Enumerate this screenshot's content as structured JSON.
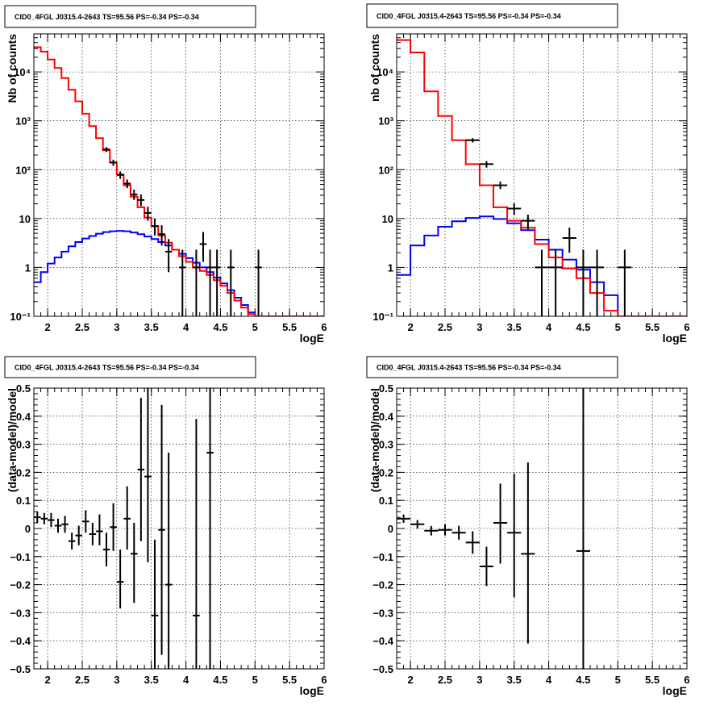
{
  "chart_data": [
    {
      "type": "line",
      "title": "CID0_4FGL J0315.4-2643 TS=95.56 PS=-0.34 PS=-0.34",
      "xlabel": "logE",
      "ylabel": "Nb of counts",
      "xlim": [
        1.8,
        6.0
      ],
      "ylim": [
        0.1,
        60000
      ],
      "yscale": "log",
      "grid": true,
      "xticks": [
        "2",
        "2.5",
        "3",
        "3.5",
        "4",
        "4.5",
        "5",
        "5.5",
        "6"
      ],
      "yticks": [
        "10⁻¹",
        "1",
        "10",
        "10²",
        "10³",
        "10⁴"
      ],
      "bin_edges": [
        1.8,
        1.9,
        2.0,
        2.1,
        2.2,
        2.3,
        2.4,
        2.5,
        2.6,
        2.7,
        2.8,
        2.9,
        3.0,
        3.1,
        3.2,
        3.3,
        3.4,
        3.5,
        3.6,
        3.7,
        3.8,
        3.9,
        4.0,
        4.1,
        4.2,
        4.3,
        4.4,
        4.5,
        4.6,
        4.7,
        4.8,
        4.9,
        5.0,
        5.1,
        5.2,
        5.3,
        5.4,
        5.5,
        5.6,
        5.7,
        5.8,
        5.9,
        6.0
      ],
      "series": [
        {
          "name": "",
          "color": "#ff0000",
          "values": [
            32000,
            26000,
            18000,
            12000,
            7500,
            4300,
            2500,
            1400,
            780,
            440,
            250,
            140,
            80,
            48,
            28,
            17,
            10.5,
            7,
            4.5,
            3.2,
            2.3,
            1.7,
            1.3,
            1.0,
            0.85,
            0.7,
            0.55,
            0.42,
            0.3,
            0.21,
            0.15,
            0.11,
            0.1,
            0.1,
            0.1,
            0.1,
            0.1,
            0.1,
            0.1,
            0.1,
            0.1,
            0.1
          ]
        },
        {
          "name": "",
          "color": "#0000ff",
          "values": [
            0.5,
            0.8,
            1.2,
            1.6,
            2.1,
            2.7,
            3.3,
            3.9,
            4.4,
            4.9,
            5.3,
            5.5,
            5.6,
            5.5,
            5.2,
            4.8,
            4.3,
            3.8,
            3.3,
            2.8,
            2.3,
            1.9,
            1.55,
            1.25,
            1.0,
            0.8,
            0.62,
            0.47,
            0.34,
            0.24,
            0.17,
            0.12,
            0.1,
            0.1,
            0.1,
            0.1,
            0.1,
            0.1,
            0.1,
            0.1,
            0.1,
            0.1
          ]
        }
      ],
      "points": [
        {
          "x": 2.85,
          "y": 260,
          "ylo": 230,
          "yhi": 290
        },
        {
          "x": 2.95,
          "y": 140,
          "ylo": 120,
          "yhi": 160
        },
        {
          "x": 3.05,
          "y": 78,
          "ylo": 65,
          "yhi": 92
        },
        {
          "x": 3.15,
          "y": 52,
          "ylo": 42,
          "yhi": 63
        },
        {
          "x": 3.25,
          "y": 31,
          "ylo": 24,
          "yhi": 39
        },
        {
          "x": 3.35,
          "y": 24,
          "ylo": 18,
          "yhi": 31
        },
        {
          "x": 3.45,
          "y": 13,
          "ylo": 9,
          "yhi": 17.5
        },
        {
          "x": 3.55,
          "y": 7,
          "ylo": 4.5,
          "yhi": 10
        },
        {
          "x": 3.65,
          "y": 4.8,
          "ylo": 2.8,
          "yhi": 7.3
        },
        {
          "x": 3.75,
          "y": 2.1,
          "ylo": 0.8,
          "yhi": 3.8
        },
        {
          "x": 3.95,
          "y": 1,
          "ylo": 0.1,
          "yhi": 2.3
        },
        {
          "x": 4.15,
          "y": 1,
          "ylo": 0.1,
          "yhi": 2.3
        },
        {
          "x": 4.25,
          "y": 3,
          "ylo": 1.3,
          "yhi": 5.3
        },
        {
          "x": 4.35,
          "y": 1,
          "ylo": 0.1,
          "yhi": 2.3
        },
        {
          "x": 4.45,
          "y": 1,
          "ylo": 0.1,
          "yhi": 2.3
        },
        {
          "x": 4.65,
          "y": 1,
          "ylo": 0.1,
          "yhi": 2.3
        },
        {
          "x": 5.05,
          "y": 1,
          "ylo": 0.1,
          "yhi": 2.3
        }
      ]
    },
    {
      "type": "line",
      "title": "CID0_4FGL J0315.4-2643 TS=95.56 PS=-0.34 PS=-0.34",
      "xlabel": "logE",
      "ylabel": "nb of counts",
      "xlim": [
        1.8,
        6.0
      ],
      "ylim": [
        0.1,
        60000
      ],
      "yscale": "log",
      "grid": true,
      "xticks": [
        "2",
        "2.5",
        "3",
        "3.5",
        "4",
        "4.5",
        "5",
        "5.5",
        "6"
      ],
      "yticks": [
        "10⁻¹",
        "1",
        "10",
        "10²",
        "10³",
        "10⁴"
      ],
      "bin_edges": [
        1.8,
        2.0,
        2.2,
        2.4,
        2.6,
        2.8,
        3.0,
        3.2,
        3.4,
        3.6,
        3.8,
        4.0,
        4.2,
        4.4,
        4.6,
        4.8,
        5.0,
        5.2,
        5.4,
        5.6,
        5.8,
        6.0
      ],
      "series": [
        {
          "name": "",
          "color": "#ff0000",
          "values": [
            45000,
            25000,
            4000,
            1250,
            400,
            130,
            48,
            17,
            9,
            6.5,
            3,
            1.6,
            0.95,
            0.6,
            0.3,
            0.13,
            0.1,
            0.1,
            0.1,
            0.1,
            0.1
          ]
        },
        {
          "name": "",
          "color": "#0000ff",
          "values": [
            0.7,
            2.8,
            4.5,
            6.8,
            8.8,
            10.3,
            11,
            9.8,
            8,
            5.8,
            3.7,
            2.3,
            1.45,
            0.9,
            0.5,
            0.27,
            0.1,
            0.1,
            0.1,
            0.1,
            0.1
          ]
        }
      ],
      "points": [
        {
          "x": 2.9,
          "y": 400,
          "ylo": 360,
          "yhi": 440
        },
        {
          "x": 3.1,
          "y": 130,
          "ylo": 110,
          "yhi": 150
        },
        {
          "x": 3.3,
          "y": 48,
          "ylo": 40,
          "yhi": 57
        },
        {
          "x": 3.5,
          "y": 16,
          "ylo": 12,
          "yhi": 20.5
        },
        {
          "x": 3.7,
          "y": 9,
          "ylo": 6,
          "yhi": 12
        },
        {
          "x": 3.9,
          "y": 1,
          "ylo": 0.1,
          "yhi": 2.3
        },
        {
          "x": 4.1,
          "y": 1,
          "ylo": 0.1,
          "yhi": 2.3
        },
        {
          "x": 4.3,
          "y": 4,
          "ylo": 2,
          "yhi": 6.5
        },
        {
          "x": 4.5,
          "y": 1,
          "ylo": 0.1,
          "yhi": 2.3
        },
        {
          "x": 4.7,
          "y": 1,
          "ylo": 0.1,
          "yhi": 2.3
        },
        {
          "x": 5.1,
          "y": 1,
          "ylo": 0.1,
          "yhi": 2.3
        }
      ]
    },
    {
      "type": "scatter",
      "title": "CID0_4FGL J0315.4-2643 TS=95.56 PS=-0.34 PS=-0.34",
      "xlabel": "logE",
      "ylabel": "(data-model)/model",
      "xlim": [
        1.8,
        6.0
      ],
      "ylim": [
        -0.5,
        0.5
      ],
      "grid": true,
      "xticks": [
        "2",
        "2.5",
        "3",
        "3.5",
        "4",
        "4.5",
        "5",
        "5.5",
        "6"
      ],
      "yticks": [
        "−0.5",
        "−0.4",
        "−0.3",
        "−0.2",
        "−0.1",
        "0",
        "0.1",
        "0.2",
        "0.3",
        "0.4",
        "0.5"
      ],
      "xhalf": 0.05,
      "points": [
        {
          "x": 1.85,
          "y": 0.04,
          "ylo": 0.02,
          "yhi": 0.06
        },
        {
          "x": 1.95,
          "y": 0.035,
          "ylo": 0.015,
          "yhi": 0.055
        },
        {
          "x": 2.05,
          "y": 0.03,
          "ylo": 0.005,
          "yhi": 0.055
        },
        {
          "x": 2.15,
          "y": 0.01,
          "ylo": -0.015,
          "yhi": 0.035
        },
        {
          "x": 2.25,
          "y": 0.015,
          "ylo": -0.015,
          "yhi": 0.045
        },
        {
          "x": 2.35,
          "y": -0.045,
          "ylo": -0.075,
          "yhi": -0.015
        },
        {
          "x": 2.45,
          "y": -0.025,
          "ylo": -0.06,
          "yhi": 0.01
        },
        {
          "x": 2.55,
          "y": 0.025,
          "ylo": -0.015,
          "yhi": 0.065
        },
        {
          "x": 2.65,
          "y": -0.02,
          "ylo": -0.06,
          "yhi": 0.02
        },
        {
          "x": 2.75,
          "y": -0.01,
          "ylo": -0.06,
          "yhi": 0.05
        },
        {
          "x": 2.85,
          "y": -0.075,
          "ylo": -0.135,
          "yhi": -0.015
        },
        {
          "x": 2.95,
          "y": 0.005,
          "ylo": -0.08,
          "yhi": 0.09
        },
        {
          "x": 3.05,
          "y": -0.19,
          "ylo": -0.285,
          "yhi": -0.075
        },
        {
          "x": 3.15,
          "y": 0.035,
          "ylo": -0.075,
          "yhi": 0.15
        },
        {
          "x": 3.25,
          "y": -0.09,
          "ylo": -0.265,
          "yhi": 0.02
        },
        {
          "x": 3.35,
          "y": 0.21,
          "ylo": -0.045,
          "yhi": 0.465
        },
        {
          "x": 3.45,
          "y": 0.185,
          "ylo": -0.12,
          "yhi": 0.5
        },
        {
          "x": 3.55,
          "y": -0.31,
          "ylo": -0.5,
          "yhi": -0.04
        },
        {
          "x": 3.65,
          "y": -0.005,
          "ylo": -0.45,
          "yhi": 0.44
        },
        {
          "x": 3.75,
          "y": -0.2,
          "ylo": -0.5,
          "yhi": 0.27
        },
        {
          "x": 4.15,
          "y": -0.31,
          "ylo": -0.5,
          "yhi": 0.39
        },
        {
          "x": 4.35,
          "y": 0.27,
          "ylo": -0.5,
          "yhi": 0.5
        }
      ]
    },
    {
      "type": "scatter",
      "title": "CID0_4FGL J0315.4-2643 TS=95.56 PS=-0.34 PS=-0.34",
      "xlabel": "logE",
      "ylabel": "(data-model)/model",
      "xlim": [
        1.8,
        6.0
      ],
      "ylim": [
        -0.5,
        0.5
      ],
      "grid": true,
      "xticks": [
        "2",
        "2.5",
        "3",
        "3.5",
        "4",
        "4.5",
        "5",
        "5.5",
        "6"
      ],
      "yticks": [
        "−0.5",
        "−0.4",
        "−0.3",
        "−0.2",
        "−0.1",
        "0",
        "0.1",
        "0.2",
        "0.3",
        "0.4",
        "0.5"
      ],
      "xhalf": 0.1,
      "points": [
        {
          "x": 1.9,
          "y": 0.035,
          "ylo": 0.02,
          "yhi": 0.05
        },
        {
          "x": 2.1,
          "y": 0.015,
          "ylo": 0.0,
          "yhi": 0.03
        },
        {
          "x": 2.3,
          "y": -0.008,
          "ylo": -0.025,
          "yhi": 0.009
        },
        {
          "x": 2.5,
          "y": -0.005,
          "ylo": -0.025,
          "yhi": 0.015
        },
        {
          "x": 2.7,
          "y": -0.015,
          "ylo": -0.04,
          "yhi": 0.01
        },
        {
          "x": 2.9,
          "y": -0.05,
          "ylo": -0.09,
          "yhi": -0.01
        },
        {
          "x": 3.1,
          "y": -0.135,
          "ylo": -0.205,
          "yhi": -0.065
        },
        {
          "x": 3.3,
          "y": 0.02,
          "ylo": -0.125,
          "yhi": 0.16
        },
        {
          "x": 3.5,
          "y": -0.015,
          "ylo": -0.245,
          "yhi": 0.195
        },
        {
          "x": 3.7,
          "y": -0.09,
          "ylo": -0.41,
          "yhi": 0.235
        },
        {
          "x": 4.5,
          "y": -0.08,
          "ylo": -0.5,
          "yhi": 0.5
        }
      ]
    }
  ]
}
